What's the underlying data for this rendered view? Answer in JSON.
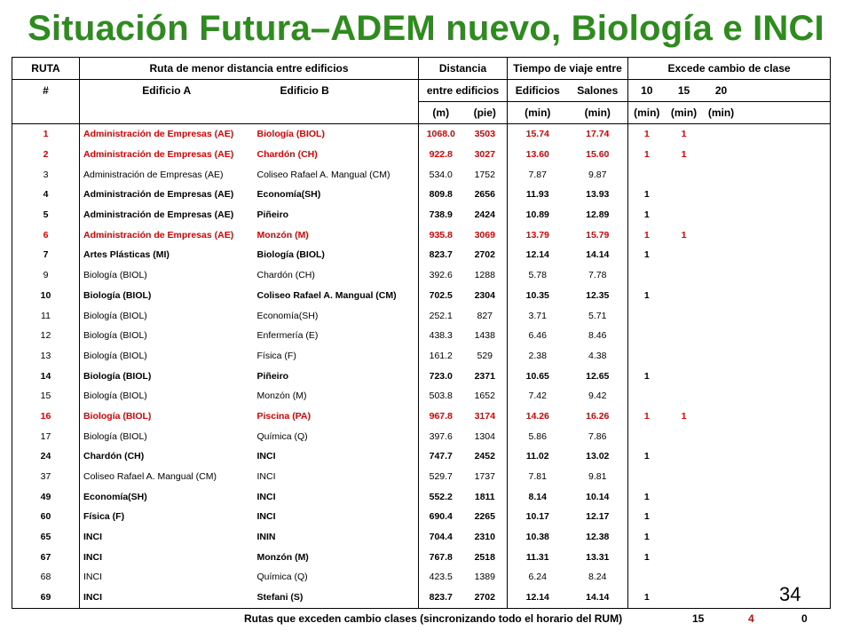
{
  "title": "Situación Futura–ADEM nuevo, Biología e INCI",
  "header": {
    "row1": {
      "ruta": "RUTA",
      "ruta_menor": "Ruta de menor distancia entre edificios",
      "distancia": "Distancia",
      "tiempo": "Tiempo de viaje entre",
      "excede": "Excede cambio de clase"
    },
    "row2": {
      "hash": "#",
      "edificio_a": "Edificio A",
      "edificio_b": "Edificio B",
      "entre": "entre edificios",
      "edificios": "Edificios",
      "salones": "Salones",
      "c10": "10",
      "c15": "15",
      "c20": "20"
    },
    "row3": {
      "m": "(m)",
      "pie": "(pie)",
      "min1": "(min)",
      "min2": "(min)",
      "min3": "(min)",
      "min4": "(min)",
      "min5": "(min)"
    }
  },
  "rows": [
    {
      "style": "red",
      "n": "1",
      "a": "Administración de Empresas (AE)",
      "b": "Biología (BIOL)",
      "m": "1068.0",
      "pie": "3503",
      "ted": "15.74",
      "tsa": "17.74",
      "e10": "1",
      "e15": "1",
      "e20": ""
    },
    {
      "style": "red",
      "n": "2",
      "a": "Administración de Empresas (AE)",
      "b": "Chardón (CH)",
      "m": "922.8",
      "pie": "3027",
      "ted": "13.60",
      "tsa": "15.60",
      "e10": "1",
      "e15": "1",
      "e20": ""
    },
    {
      "style": "normal",
      "n": "3",
      "a": "Administración de Empresas (AE)",
      "b": "Coliseo Rafael A. Mangual (CM)",
      "m": "534.0",
      "pie": "1752",
      "ted": "7.87",
      "tsa": "9.87",
      "e10": "",
      "e15": "",
      "e20": ""
    },
    {
      "style": "bold",
      "n": "4",
      "a": "Administración de Empresas (AE)",
      "b": "Economía(SH)",
      "m": "809.8",
      "pie": "2656",
      "ted": "11.93",
      "tsa": "13.93",
      "e10": "1",
      "e15": "",
      "e20": ""
    },
    {
      "style": "bold",
      "n": "5",
      "a": "Administración de Empresas (AE)",
      "b": "Piñeiro",
      "m": "738.9",
      "pie": "2424",
      "ted": "10.89",
      "tsa": "12.89",
      "e10": "1",
      "e15": "",
      "e20": ""
    },
    {
      "style": "red",
      "n": "6",
      "a": "Administración de Empresas (AE)",
      "b": "Monzón (M)",
      "m": "935.8",
      "pie": "3069",
      "ted": "13.79",
      "tsa": "15.79",
      "e10": "1",
      "e15": "1",
      "e20": ""
    },
    {
      "style": "bold",
      "n": "7",
      "a": "Artes Plásticas (MI)",
      "b": "Biología (BIOL)",
      "m": "823.7",
      "pie": "2702",
      "ted": "12.14",
      "tsa": "14.14",
      "e10": "1",
      "e15": "",
      "e20": ""
    },
    {
      "style": "normal",
      "n": "9",
      "a": "Biología (BIOL)",
      "b": "Chardón (CH)",
      "m": "392.6",
      "pie": "1288",
      "ted": "5.78",
      "tsa": "7.78",
      "e10": "",
      "e15": "",
      "e20": ""
    },
    {
      "style": "bold",
      "n": "10",
      "a": "Biología (BIOL)",
      "b": "Coliseo Rafael A. Mangual (CM)",
      "m": "702.5",
      "pie": "2304",
      "ted": "10.35",
      "tsa": "12.35",
      "e10": "1",
      "e15": "",
      "e20": ""
    },
    {
      "style": "normal",
      "n": "11",
      "a": "Biología (BIOL)",
      "b": "Economía(SH)",
      "m": "252.1",
      "pie": "827",
      "ted": "3.71",
      "tsa": "5.71",
      "e10": "",
      "e15": "",
      "e20": ""
    },
    {
      "style": "normal",
      "n": "12",
      "a": "Biología (BIOL)",
      "b": "Enfermería (E)",
      "m": "438.3",
      "pie": "1438",
      "ted": "6.46",
      "tsa": "8.46",
      "e10": "",
      "e15": "",
      "e20": ""
    },
    {
      "style": "normal",
      "n": "13",
      "a": "Biología (BIOL)",
      "b": "Física (F)",
      "m": "161.2",
      "pie": "529",
      "ted": "2.38",
      "tsa": "4.38",
      "e10": "",
      "e15": "",
      "e20": ""
    },
    {
      "style": "bold",
      "n": "14",
      "a": "Biología (BIOL)",
      "b": "Piñeiro",
      "m": "723.0",
      "pie": "2371",
      "ted": "10.65",
      "tsa": "12.65",
      "e10": "1",
      "e15": "",
      "e20": ""
    },
    {
      "style": "normal",
      "n": "15",
      "a": "Biología (BIOL)",
      "b": "Monzón (M)",
      "m": "503.8",
      "pie": "1652",
      "ted": "7.42",
      "tsa": "9.42",
      "e10": "",
      "e15": "",
      "e20": ""
    },
    {
      "style": "red",
      "n": "16",
      "a": "Biología (BIOL)",
      "b": "Piscina (PA)",
      "m": "967.8",
      "pie": "3174",
      "ted": "14.26",
      "tsa": "16.26",
      "e10": "1",
      "e15": "1",
      "e20": ""
    },
    {
      "style": "normal",
      "n": "17",
      "a": "Biología (BIOL)",
      "b": "Química (Q)",
      "m": "397.6",
      "pie": "1304",
      "ted": "5.86",
      "tsa": "7.86",
      "e10": "",
      "e15": "",
      "e20": ""
    },
    {
      "style": "bold",
      "n": "24",
      "a": "Chardón (CH)",
      "b": "INCI",
      "m": "747.7",
      "pie": "2452",
      "ted": "11.02",
      "tsa": "13.02",
      "e10": "1",
      "e15": "",
      "e20": ""
    },
    {
      "style": "normal",
      "n": "37",
      "a": "Coliseo Rafael A. Mangual (CM)",
      "b": "INCI",
      "m": "529.7",
      "pie": "1737",
      "ted": "7.81",
      "tsa": "9.81",
      "e10": "",
      "e15": "",
      "e20": ""
    },
    {
      "style": "bold",
      "n": "49",
      "a": "Economía(SH)",
      "b": "INCI",
      "m": "552.2",
      "pie": "1811",
      "ted": "8.14",
      "tsa": "10.14",
      "e10": "1",
      "e15": "",
      "e20": ""
    },
    {
      "style": "bold",
      "n": "60",
      "a": "Física (F)",
      "b": "INCI",
      "m": "690.4",
      "pie": "2265",
      "ted": "10.17",
      "tsa": "12.17",
      "e10": "1",
      "e15": "",
      "e20": ""
    },
    {
      "style": "bold",
      "n": "65",
      "a": "INCI",
      "b": "ININ",
      "m": "704.4",
      "pie": "2310",
      "ted": "10.38",
      "tsa": "12.38",
      "e10": "1",
      "e15": "",
      "e20": ""
    },
    {
      "style": "bold",
      "n": "67",
      "a": "INCI",
      "b": "Monzón (M)",
      "m": "767.8",
      "pie": "2518",
      "ted": "11.31",
      "tsa": "13.31",
      "e10": "1",
      "e15": "",
      "e20": ""
    },
    {
      "style": "normal",
      "n": "68",
      "a": "INCI",
      "b": "Química (Q)",
      "m": "423.5",
      "pie": "1389",
      "ted": "6.24",
      "tsa": "8.24",
      "e10": "",
      "e15": "",
      "e20": ""
    },
    {
      "style": "bold",
      "n": "69",
      "a": "INCI",
      "b": "Stefani (S)",
      "m": "823.7",
      "pie": "2702",
      "ted": "12.14",
      "tsa": "14.14",
      "e10": "1",
      "e15": "",
      "e20": ""
    }
  ],
  "footer": {
    "label": "Rutas que exceden cambio clases (sincronizando todo el horario del RUM)",
    "t10": "15",
    "t15": "4",
    "t20": "0"
  },
  "page_number": "34",
  "colors": {
    "title": "#2e8b1e",
    "highlight": "#e00000"
  }
}
